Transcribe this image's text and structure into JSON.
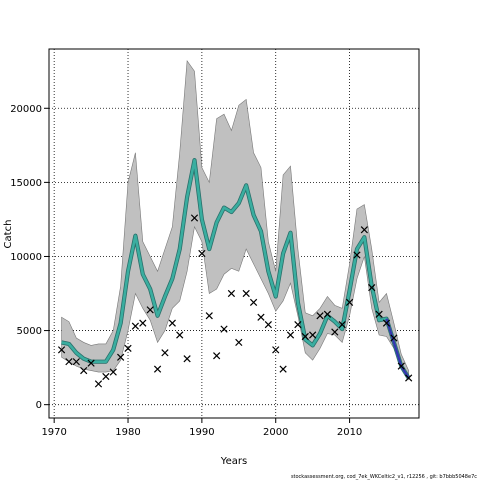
{
  "chart_data": {
    "type": "line",
    "xlabel": "Years",
    "ylabel": "Catch",
    "xlim": [
      1969.3,
      2019.4
    ],
    "ylim": [
      -900,
      24000
    ],
    "x_ticks": [
      1970,
      1980,
      1990,
      2000,
      2010
    ],
    "y_ticks": [
      0,
      5000,
      10000,
      15000,
      20000
    ],
    "grid": true,
    "colors": {
      "band": "#c0c0c0",
      "band_edge": "#777777",
      "line": "#3aaea0",
      "line_edge": "#2a6f6a",
      "line_end": "#3535b0",
      "obs": "#000000"
    },
    "series": [
      {
        "kind": "ribbon",
        "x": [
          1971,
          1972,
          1973,
          1974,
          1975,
          1976,
          1977,
          1978,
          1979,
          1980,
          1981,
          1982,
          1983,
          1984,
          1985,
          1986,
          1987,
          1988,
          1989,
          1990,
          1991,
          1992,
          1993,
          1994,
          1995,
          1996,
          1997,
          1998,
          1999,
          2000,
          2001,
          2002,
          2003,
          2004,
          2005,
          2006,
          2007,
          2008,
          2009,
          2010,
          2011,
          2012,
          2013,
          2014,
          2015,
          2016,
          2017,
          2018
        ],
        "lower": [
          3200,
          2900,
          2600,
          2400,
          2300,
          2200,
          2200,
          2300,
          3000,
          5000,
          7500,
          6500,
          5700,
          4200,
          5000,
          6500,
          7000,
          9000,
          12000,
          11000,
          7500,
          7800,
          8800,
          9200,
          9000,
          10500,
          9500,
          8500,
          7500,
          6300,
          7000,
          8200,
          6000,
          3500,
          3000,
          3800,
          4800,
          4700,
          4200,
          6000,
          8500,
          10000,
          6500,
          4700,
          4600,
          3800,
          2400,
          1700
        ],
        "upper": [
          5900,
          5600,
          4500,
          4200,
          4000,
          4100,
          4100,
          5000,
          8000,
          15000,
          17000,
          11000,
          10000,
          9000,
          10500,
          12000,
          17000,
          23200,
          22500,
          16000,
          15000,
          19300,
          19600,
          18500,
          20200,
          20600,
          17000,
          16000,
          11000,
          9000,
          15500,
          16100,
          10500,
          6200,
          6000,
          6500,
          7300,
          6700,
          6500,
          9500,
          13200,
          13500,
          10500,
          6900,
          7500,
          5500,
          3400,
          2300
        ]
      },
      {
        "kind": "line",
        "x": [
          1971,
          1972,
          1973,
          1974,
          1975,
          1976,
          1977,
          1978,
          1979,
          1980,
          1981,
          1982,
          1983,
          1984,
          1985,
          1986,
          1987,
          1988,
          1989,
          1990,
          1991,
          1992,
          1993,
          1994,
          1995,
          1996,
          1997,
          1998,
          1999,
          2000,
          2001,
          2002,
          2003,
          2004,
          2005,
          2006,
          2007,
          2008,
          2009,
          2010,
          2011,
          2012,
          2013,
          2014,
          2015,
          2016,
          2017,
          2018
        ],
        "values": [
          4200,
          4100,
          3500,
          3100,
          2900,
          2900,
          2900,
          3700,
          5500,
          9000,
          11400,
          8800,
          7800,
          6000,
          7300,
          8500,
          10500,
          14000,
          16500,
          12500,
          10500,
          12300,
          13300,
          13000,
          13600,
          14800,
          12800,
          11700,
          9000,
          7300,
          10200,
          11600,
          6900,
          4400,
          4000,
          4800,
          6000,
          5600,
          5100,
          7700,
          10500,
          11300,
          8000,
          5700,
          5800,
          4200,
          2600,
          1800
        ]
      },
      {
        "kind": "scatter",
        "marker": "x",
        "x": [
          1971,
          1972,
          1973,
          1974,
          1975,
          1976,
          1977,
          1978,
          1979,
          1980,
          1981,
          1982,
          1983,
          1984,
          1985,
          1986,
          1987,
          1988,
          1989,
          1990,
          1991,
          1992,
          1993,
          1994,
          1995,
          1996,
          1997,
          1998,
          1999,
          2000,
          2001,
          2002,
          2003,
          2004,
          2005,
          2006,
          2007,
          2008,
          2009,
          2010,
          2011,
          2012,
          2013,
          2014,
          2015,
          2016,
          2017,
          2018
        ],
        "values": [
          3700,
          2900,
          2900,
          2300,
          2800,
          1400,
          1900,
          2200,
          3200,
          3800,
          5300,
          5500,
          6400,
          2400,
          3500,
          5500,
          4700,
          3100,
          12600,
          10200,
          6000,
          3300,
          5100,
          7500,
          4200,
          7500,
          6900,
          5900,
          5400,
          3700,
          2400,
          4700,
          5400,
          4600,
          4700,
          6000,
          6100,
          4900,
          5400,
          6900,
          10100,
          11800,
          7900,
          6100,
          5500,
          4500,
          2600,
          1800
        ]
      }
    ],
    "footer": "stockassessment.org, cod_7ek_WKCeltic2_v1, r12256 , git: b7bbb5048e7c"
  }
}
